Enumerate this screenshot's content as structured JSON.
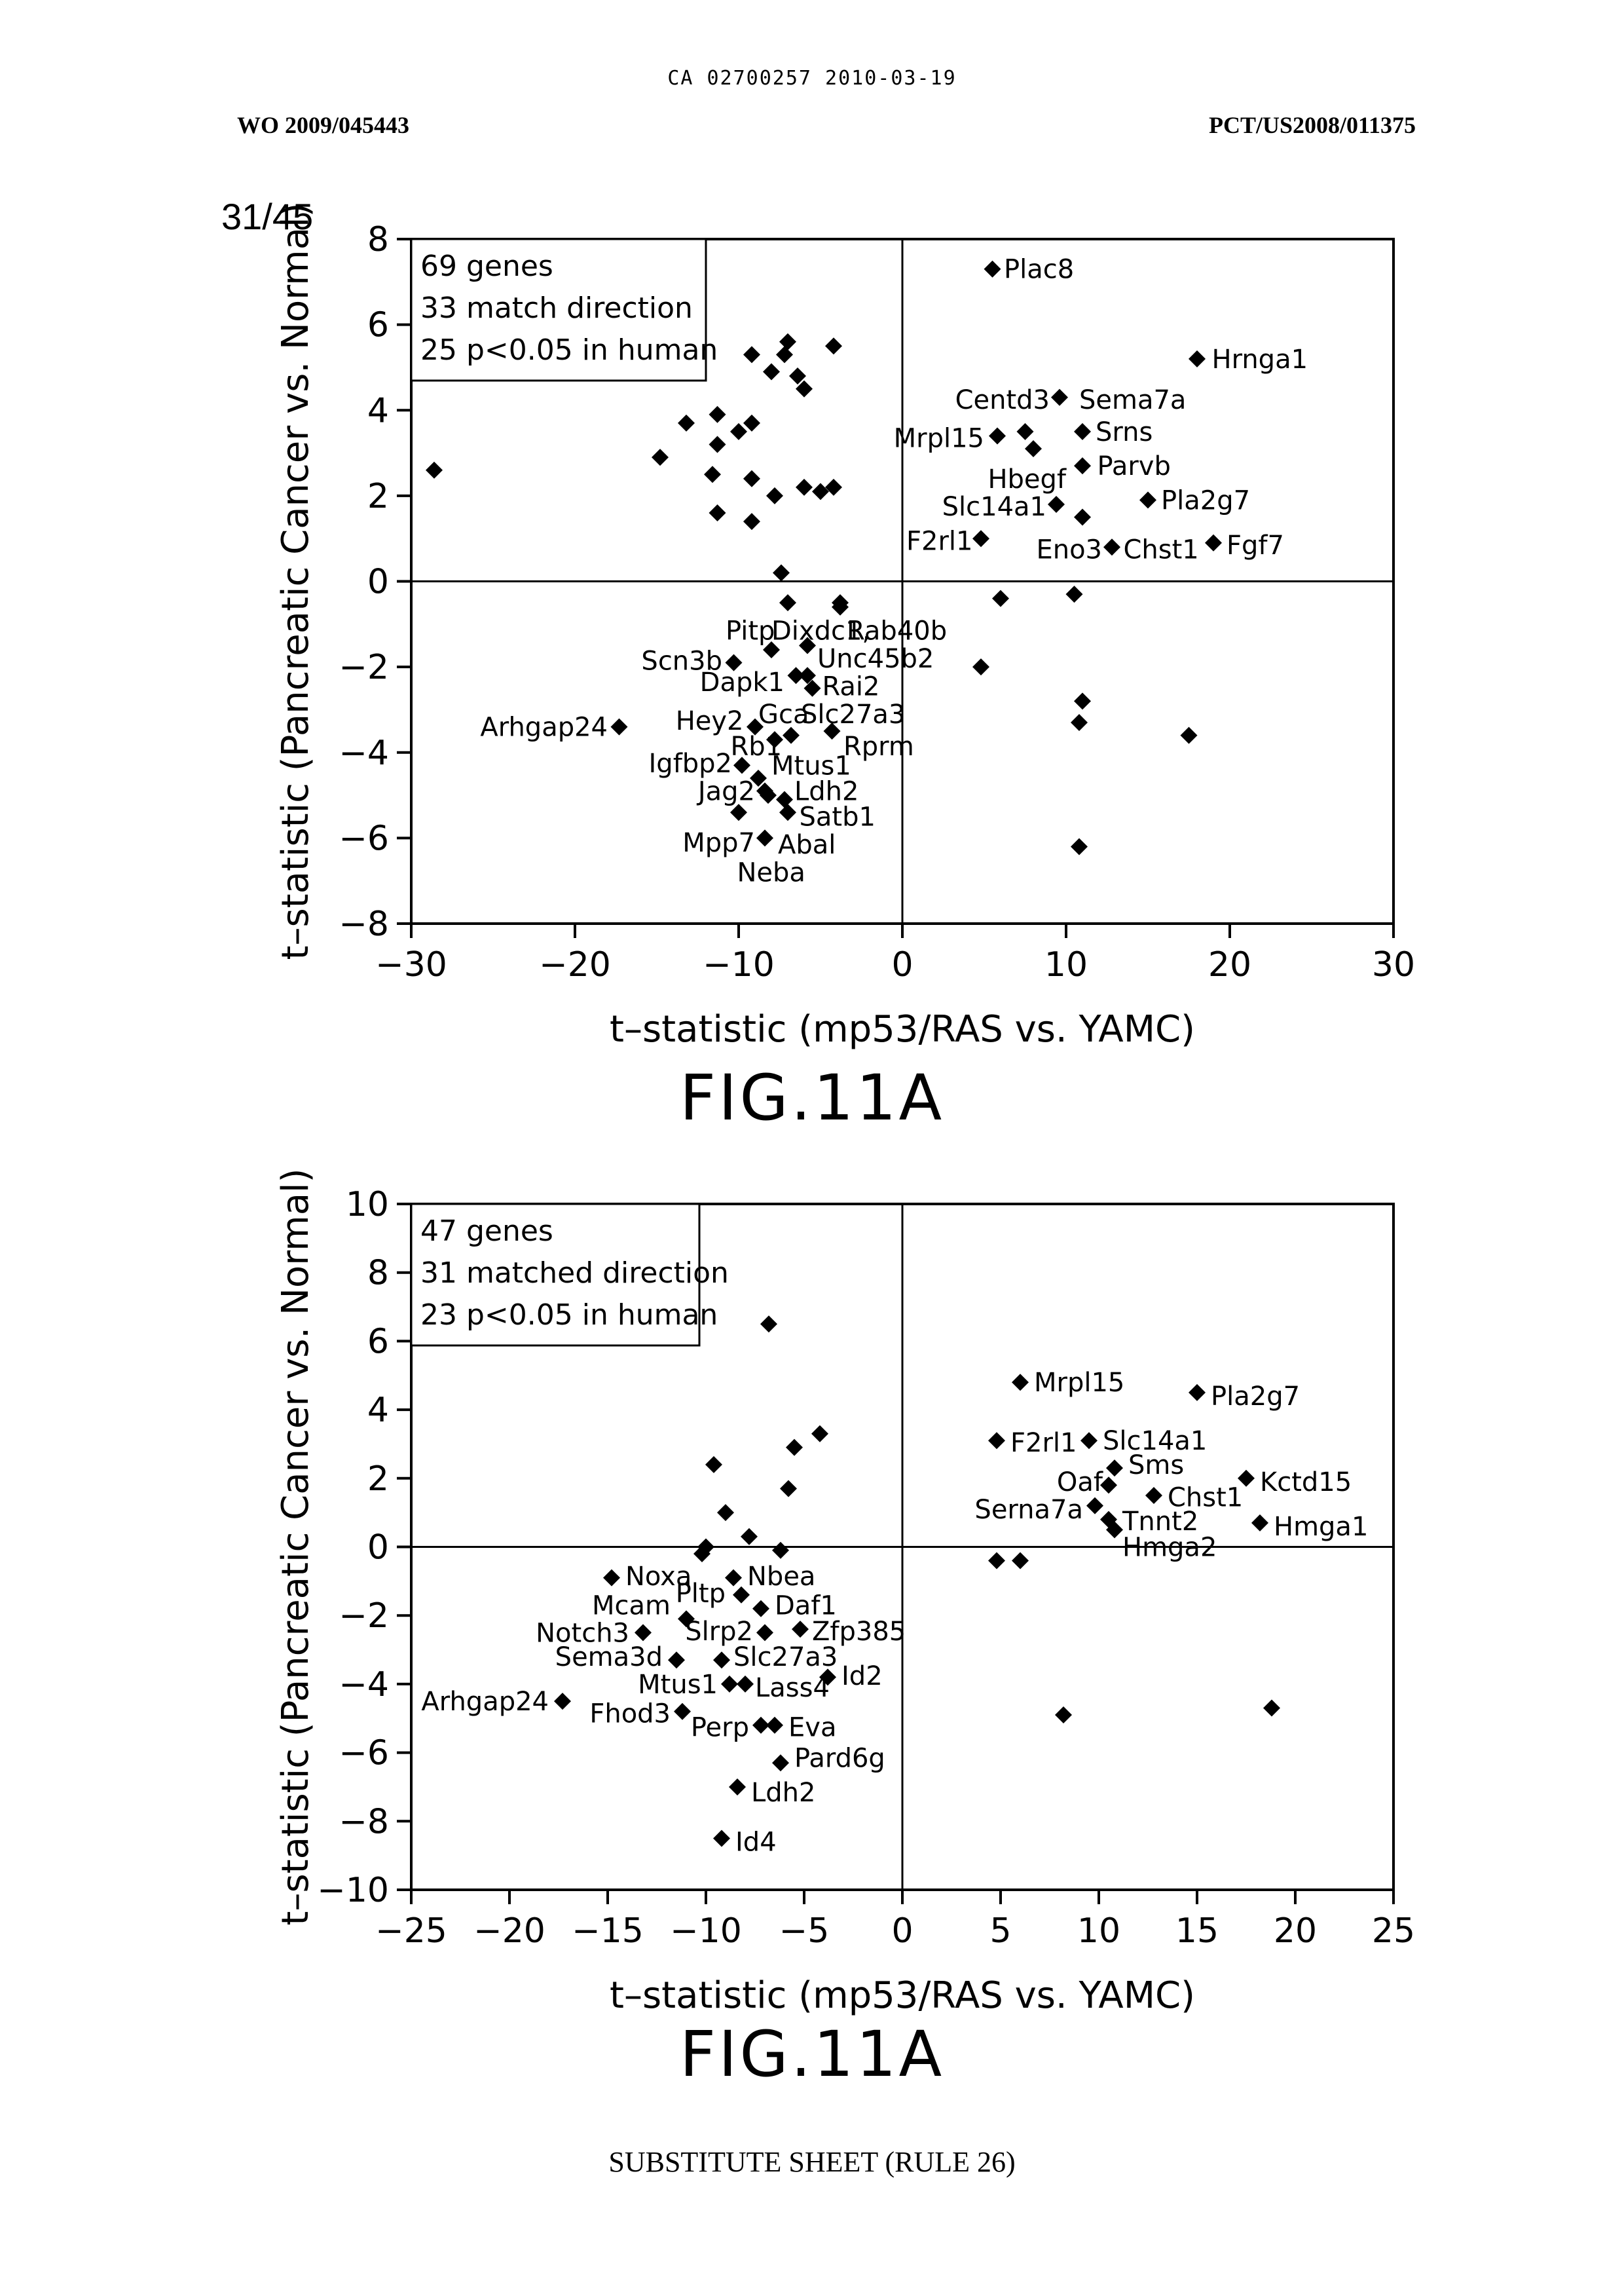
{
  "header": {
    "ca_number": "CA 02700257 2010-03-19",
    "wo_number": "WO 2009/045443",
    "pct_number": "PCT/US2008/011375",
    "sheet": "31/45"
  },
  "footer": {
    "text": "SUBSTITUTE SHEET (RULE 26)"
  },
  "colors": {
    "ink": "#000000",
    "background": "#ffffff"
  },
  "chart_data": [
    {
      "type": "scatter",
      "figure_label": "FIG.11A",
      "xlabel": "t–statistic (mp53/RAS vs. YAMC)",
      "ylabel": "t–statistic (Pancreatic Cancer vs. Normal)",
      "xlim": [
        -30,
        30
      ],
      "ylim": [
        -8,
        8
      ],
      "xticks": [
        -30,
        -20,
        -10,
        0,
        10,
        20,
        30
      ],
      "yticks": [
        -8,
        -6,
        -4,
        -2,
        0,
        2,
        4,
        6,
        8
      ],
      "tick_labels_x": [
        "−30",
        "−20",
        "−10",
        "0",
        "10",
        "20",
        "30"
      ],
      "tick_labels_y": [
        "−8",
        "−6",
        "−4",
        "−2",
        "0",
        "2",
        "4",
        "6",
        "8"
      ],
      "legend_box": [
        "69 genes",
        "33 match direction",
        "25 p<0.05 in human"
      ],
      "legend_position": "top-left",
      "marker": "diamond",
      "points": [
        {
          "x": -28.6,
          "y": 2.6
        },
        {
          "x": -14.8,
          "y": 2.9
        },
        {
          "x": -13.2,
          "y": 3.7
        },
        {
          "x": -11.3,
          "y": 3.9
        },
        {
          "x": -11.3,
          "y": 3.2
        },
        {
          "x": -10.0,
          "y": 3.5
        },
        {
          "x": -9.2,
          "y": 3.7
        },
        {
          "x": -9.2,
          "y": 5.3
        },
        {
          "x": -8.0,
          "y": 4.9
        },
        {
          "x": -7.2,
          "y": 5.3
        },
        {
          "x": -7.0,
          "y": 5.6
        },
        {
          "x": -6.4,
          "y": 4.8
        },
        {
          "x": -6.0,
          "y": 4.5
        },
        {
          "x": -4.2,
          "y": 5.5
        },
        {
          "x": -11.6,
          "y": 2.5
        },
        {
          "x": -9.2,
          "y": 2.4
        },
        {
          "x": -7.8,
          "y": 2.0
        },
        {
          "x": -6.0,
          "y": 2.2
        },
        {
          "x": -5.0,
          "y": 2.1
        },
        {
          "x": -4.2,
          "y": 2.2
        },
        {
          "x": -11.3,
          "y": 1.6
        },
        {
          "x": -9.2,
          "y": 1.4
        },
        {
          "x": -7.4,
          "y": 0.2
        },
        {
          "x": -7.0,
          "y": -0.5
        },
        {
          "x": -3.8,
          "y": -0.6
        },
        {
          "x": -3.8,
          "y": -0.5
        },
        {
          "x": -8.0,
          "y": -1.6
        },
        {
          "x": -5.8,
          "y": -1.5
        },
        {
          "x": -10.3,
          "y": -1.9
        },
        {
          "x": -6.5,
          "y": -2.2
        },
        {
          "x": -5.8,
          "y": -2.2
        },
        {
          "x": -5.5,
          "y": -2.5
        },
        {
          "x": -17.3,
          "y": -3.4
        },
        {
          "x": -9.0,
          "y": -3.4
        },
        {
          "x": -7.8,
          "y": -3.7
        },
        {
          "x": -6.8,
          "y": -3.6
        },
        {
          "x": -4.3,
          "y": -3.5
        },
        {
          "x": -9.8,
          "y": -4.3
        },
        {
          "x": -8.8,
          "y": -4.6
        },
        {
          "x": -8.4,
          "y": -4.9
        },
        {
          "x": -8.2,
          "y": -5.0
        },
        {
          "x": -7.2,
          "y": -5.1
        },
        {
          "x": -7.0,
          "y": -5.4
        },
        {
          "x": -10.0,
          "y": -5.4
        },
        {
          "x": -8.4,
          "y": -6.0
        },
        {
          "x": 5.5,
          "y": 7.3
        },
        {
          "x": 18.0,
          "y": 5.2
        },
        {
          "x": 9.6,
          "y": 4.3
        },
        {
          "x": 7.5,
          "y": 3.5
        },
        {
          "x": 5.8,
          "y": 3.4
        },
        {
          "x": 8.0,
          "y": 3.1
        },
        {
          "x": 11.0,
          "y": 3.5
        },
        {
          "x": 11.0,
          "y": 2.7
        },
        {
          "x": 15.0,
          "y": 1.9
        },
        {
          "x": 9.4,
          "y": 1.8
        },
        {
          "x": 11.0,
          "y": 1.5
        },
        {
          "x": 4.8,
          "y": 1.0
        },
        {
          "x": 12.8,
          "y": 0.8
        },
        {
          "x": 19.0,
          "y": 0.9
        },
        {
          "x": 6.0,
          "y": -0.4
        },
        {
          "x": 10.5,
          "y": -0.3
        },
        {
          "x": 4.8,
          "y": -2.0
        },
        {
          "x": 11.0,
          "y": -2.8
        },
        {
          "x": 10.8,
          "y": -3.3
        },
        {
          "x": 17.5,
          "y": -3.6
        },
        {
          "x": 10.8,
          "y": -6.2
        }
      ],
      "labels": [
        {
          "text": "Plac8",
          "x": 6.2,
          "y": 7.3,
          "anchor": "start"
        },
        {
          "text": "Hrnga1",
          "x": 18.9,
          "y": 5.2,
          "anchor": "start"
        },
        {
          "text": "Centd3",
          "x": 9.0,
          "y": 4.25,
          "anchor": "end"
        },
        {
          "text": "Sema7a",
          "x": 10.8,
          "y": 4.25,
          "anchor": "start"
        },
        {
          "text": "Srns",
          "x": 11.8,
          "y": 3.5,
          "anchor": "start"
        },
        {
          "text": "Mrpl15",
          "x": 5.0,
          "y": 3.35,
          "anchor": "end"
        },
        {
          "text": "Hbegf",
          "x": 10.0,
          "y": 2.4,
          "anchor": "end"
        },
        {
          "text": "Parvb",
          "x": 11.9,
          "y": 2.7,
          "anchor": "start"
        },
        {
          "text": "Pla2g7",
          "x": 15.8,
          "y": 1.9,
          "anchor": "start"
        },
        {
          "text": "Slc14a1",
          "x": 8.8,
          "y": 1.75,
          "anchor": "end"
        },
        {
          "text": "F2rl1",
          "x": 4.3,
          "y": 0.95,
          "anchor": "end"
        },
        {
          "text": "Eno3",
          "x": 12.2,
          "y": 0.75,
          "anchor": "end"
        },
        {
          "text": "Chst1",
          "x": 13.5,
          "y": 0.75,
          "anchor": "start"
        },
        {
          "text": "Fgf7",
          "x": 19.8,
          "y": 0.85,
          "anchor": "start"
        },
        {
          "text": "Pitp",
          "x": -10.8,
          "y": -1.15,
          "anchor": "start"
        },
        {
          "text": "Dixdc1,",
          "x": -8.0,
          "y": -1.15,
          "anchor": "start"
        },
        {
          "text": "Rab40b",
          "x": -3.4,
          "y": -1.15,
          "anchor": "start"
        },
        {
          "text": "Scn3b",
          "x": -11.0,
          "y": -1.85,
          "anchor": "end"
        },
        {
          "text": "Unc45b2",
          "x": -5.2,
          "y": -1.8,
          "anchor": "start"
        },
        {
          "text": "Dapk1",
          "x": -7.2,
          "y": -2.35,
          "anchor": "end"
        },
        {
          "text": "Rai2",
          "x": -4.9,
          "y": -2.45,
          "anchor": "start"
        },
        {
          "text": "Arhgap24",
          "x": -18.0,
          "y": -3.4,
          "anchor": "end"
        },
        {
          "text": "Hey2",
          "x": -9.7,
          "y": -3.25,
          "anchor": "end"
        },
        {
          "text": "Gca",
          "x": -8.8,
          "y": -3.1,
          "anchor": "start"
        },
        {
          "text": "Slc27a3",
          "x": -6.2,
          "y": -3.1,
          "anchor": "start"
        },
        {
          "text": "Rb1",
          "x": -10.5,
          "y": -3.85,
          "anchor": "start"
        },
        {
          "text": "Rprm",
          "x": -3.6,
          "y": -3.85,
          "anchor": "start"
        },
        {
          "text": "Igfbp2",
          "x": -10.4,
          "y": -4.25,
          "anchor": "end"
        },
        {
          "text": "Mtus1",
          "x": -8.0,
          "y": -4.3,
          "anchor": "start"
        },
        {
          "text": "Jag2",
          "x": -9.0,
          "y": -4.9,
          "anchor": "end"
        },
        {
          "text": "Ldh2",
          "x": -6.6,
          "y": -4.9,
          "anchor": "start"
        },
        {
          "text": "Satb1",
          "x": -6.3,
          "y": -5.5,
          "anchor": "start"
        },
        {
          "text": "Mpp7",
          "x": -9.0,
          "y": -6.1,
          "anchor": "end"
        },
        {
          "text": "Abal",
          "x": -7.6,
          "y": -6.15,
          "anchor": "start"
        },
        {
          "text": "Neba",
          "x": -10.1,
          "y": -6.8,
          "anchor": "start"
        }
      ]
    },
    {
      "type": "scatter",
      "figure_label": "FIG.11A",
      "xlabel": "t–statistic (mp53/RAS vs. YAMC)",
      "ylabel": "t–statistic (Pancreatic Cancer vs. Normal)",
      "xlim": [
        -25,
        25
      ],
      "ylim": [
        -10,
        10
      ],
      "xticks": [
        -25,
        -20,
        -15,
        -10,
        -5,
        0,
        5,
        10,
        15,
        20,
        25
      ],
      "yticks": [
        -10,
        -8,
        -6,
        -4,
        -2,
        0,
        2,
        4,
        6,
        8,
        10
      ],
      "tick_labels_x": [
        "−25",
        "−20",
        "−15",
        "−10",
        "−5",
        "0",
        "5",
        "10",
        "15",
        "20",
        "25"
      ],
      "tick_labels_y": [
        "−10",
        "−8",
        "−6",
        "−4",
        "−2",
        "0",
        "2",
        "4",
        "6",
        "8",
        "10"
      ],
      "legend_box": [
        "47 genes",
        "31 matched direction",
        "23 p<0.05 in human"
      ],
      "legend_position": "top-left",
      "marker": "diamond",
      "points": [
        {
          "x": -6.8,
          "y": 6.5
        },
        {
          "x": -4.2,
          "y": 3.3
        },
        {
          "x": -5.5,
          "y": 2.9
        },
        {
          "x": -9.6,
          "y": 2.4
        },
        {
          "x": -5.8,
          "y": 1.7
        },
        {
          "x": -9.0,
          "y": 1.0
        },
        {
          "x": -7.8,
          "y": 0.3
        },
        {
          "x": -10.0,
          "y": 0.0
        },
        {
          "x": -10.2,
          "y": -0.2
        },
        {
          "x": -6.2,
          "y": -0.1
        },
        {
          "x": -14.8,
          "y": -0.9
        },
        {
          "x": -8.6,
          "y": -0.9
        },
        {
          "x": -8.2,
          "y": -1.4
        },
        {
          "x": -7.2,
          "y": -1.8
        },
        {
          "x": -11.0,
          "y": -2.1
        },
        {
          "x": -13.2,
          "y": -2.5
        },
        {
          "x": -7.0,
          "y": -2.5
        },
        {
          "x": -5.2,
          "y": -2.4
        },
        {
          "x": -11.5,
          "y": -3.3
        },
        {
          "x": -9.2,
          "y": -3.3
        },
        {
          "x": -8.8,
          "y": -4.0
        },
        {
          "x": -8.0,
          "y": -4.0
        },
        {
          "x": -3.8,
          "y": -3.8
        },
        {
          "x": -17.3,
          "y": -4.5
        },
        {
          "x": -11.2,
          "y": -4.8
        },
        {
          "x": -7.2,
          "y": -5.2
        },
        {
          "x": -6.5,
          "y": -5.2
        },
        {
          "x": -6.2,
          "y": -6.3
        },
        {
          "x": -8.4,
          "y": -7.0
        },
        {
          "x": -9.2,
          "y": -8.5
        },
        {
          "x": 6.0,
          "y": 4.8
        },
        {
          "x": 15.0,
          "y": 4.5
        },
        {
          "x": 4.8,
          "y": 3.1
        },
        {
          "x": 9.5,
          "y": 3.1
        },
        {
          "x": 10.8,
          "y": 2.3
        },
        {
          "x": 17.5,
          "y": 2.0
        },
        {
          "x": 10.5,
          "y": 1.8
        },
        {
          "x": 12.8,
          "y": 1.5
        },
        {
          "x": 9.8,
          "y": 1.2
        },
        {
          "x": 10.5,
          "y": 0.8
        },
        {
          "x": 18.2,
          "y": 0.7
        },
        {
          "x": 10.8,
          "y": 0.5
        },
        {
          "x": 4.8,
          "y": -0.4
        },
        {
          "x": 6.0,
          "y": -0.4
        },
        {
          "x": 8.2,
          "y": -4.9
        },
        {
          "x": 18.8,
          "y": -4.7
        }
      ],
      "labels": [
        {
          "text": "Mrpl15",
          "x": 6.7,
          "y": 4.8,
          "anchor": "start"
        },
        {
          "text": "Pla2g7",
          "x": 15.7,
          "y": 4.4,
          "anchor": "start"
        },
        {
          "text": "F2rl1",
          "x": 5.5,
          "y": 3.05,
          "anchor": "start"
        },
        {
          "text": "Slc14a1",
          "x": 10.2,
          "y": 3.1,
          "anchor": "start"
        },
        {
          "text": "Sms",
          "x": 11.5,
          "y": 2.4,
          "anchor": "start"
        },
        {
          "text": "Kctd15",
          "x": 18.2,
          "y": 1.9,
          "anchor": "start"
        },
        {
          "text": "Oaf",
          "x": 10.2,
          "y": 1.9,
          "anchor": "end"
        },
        {
          "text": "Chst1",
          "x": 13.5,
          "y": 1.45,
          "anchor": "start"
        },
        {
          "text": "Serna7a",
          "x": 9.2,
          "y": 1.1,
          "anchor": "end"
        },
        {
          "text": "Tnnt2",
          "x": 11.2,
          "y": 0.75,
          "anchor": "start"
        },
        {
          "text": "Hmga1",
          "x": 18.9,
          "y": 0.6,
          "anchor": "start"
        },
        {
          "text": "Hmga2",
          "x": 11.2,
          "y": 0.0,
          "anchor": "start"
        },
        {
          "text": "Noxa",
          "x": -14.1,
          "y": -0.85,
          "anchor": "start"
        },
        {
          "text": "Nbea",
          "x": -7.9,
          "y": -0.85,
          "anchor": "start"
        },
        {
          "text": "Mcam",
          "x": -11.8,
          "y": -1.7,
          "anchor": "end"
        },
        {
          "text": "Pltp",
          "x": -9.0,
          "y": -1.35,
          "anchor": "end"
        },
        {
          "text": "Daf1",
          "x": -6.5,
          "y": -1.7,
          "anchor": "start"
        },
        {
          "text": "Notch3",
          "x": -13.9,
          "y": -2.5,
          "anchor": "end"
        },
        {
          "text": "Slrp2",
          "x": -7.6,
          "y": -2.45,
          "anchor": "end"
        },
        {
          "text": "Zfp385",
          "x": -4.6,
          "y": -2.45,
          "anchor": "start"
        },
        {
          "text": "Sema3d",
          "x": -12.2,
          "y": -3.2,
          "anchor": "end"
        },
        {
          "text": "Slc27a3",
          "x": -8.6,
          "y": -3.2,
          "anchor": "start"
        },
        {
          "text": "Id2",
          "x": -3.1,
          "y": -3.75,
          "anchor": "start"
        },
        {
          "text": "Mtus1",
          "x": -9.4,
          "y": -4.0,
          "anchor": "end"
        },
        {
          "text": "Lass4",
          "x": -7.5,
          "y": -4.1,
          "anchor": "start"
        },
        {
          "text": "Arhgap24",
          "x": -18.0,
          "y": -4.5,
          "anchor": "end"
        },
        {
          "text": "Fhod3",
          "x": -11.8,
          "y": -4.85,
          "anchor": "end"
        },
        {
          "text": "Perp",
          "x": -7.8,
          "y": -5.25,
          "anchor": "end"
        },
        {
          "text": "Eva",
          "x": -5.8,
          "y": -5.25,
          "anchor": "start"
        },
        {
          "text": "Pard6g",
          "x": -5.5,
          "y": -6.15,
          "anchor": "start"
        },
        {
          "text": "Ldh2",
          "x": -7.7,
          "y": -7.15,
          "anchor": "start"
        },
        {
          "text": "Id4",
          "x": -8.5,
          "y": -8.6,
          "anchor": "start"
        }
      ]
    }
  ],
  "figure_labels": [
    "FIG.11A",
    "FIG.11A"
  ]
}
